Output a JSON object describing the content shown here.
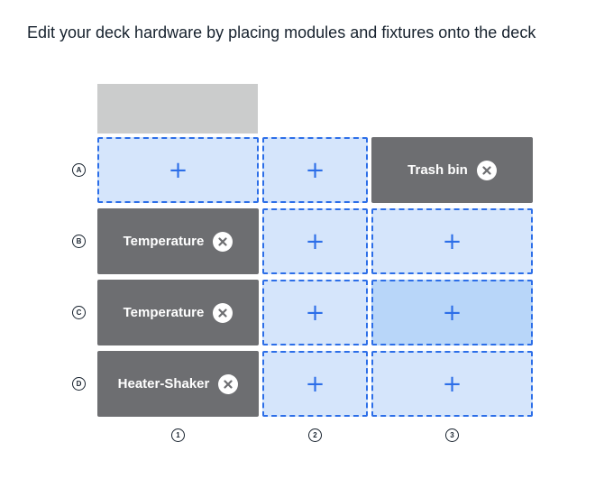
{
  "instruction": "Edit your deck hardware by placing modules and fixtures onto the deck",
  "rows": [
    "A",
    "B",
    "C",
    "D"
  ],
  "columns": [
    "1",
    "2",
    "3"
  ],
  "slots": {
    "A1": {
      "type": "empty",
      "icon": "+"
    },
    "A2": {
      "type": "empty",
      "icon": "+"
    },
    "A3": {
      "type": "fixture",
      "label": "Trash bin"
    },
    "B1": {
      "type": "module",
      "label": "Temperature"
    },
    "B2": {
      "type": "empty",
      "icon": "+"
    },
    "B3": {
      "type": "empty",
      "icon": "+"
    },
    "C1": {
      "type": "module",
      "label": "Temperature"
    },
    "C2": {
      "type": "empty",
      "icon": "+"
    },
    "C3": {
      "type": "empty",
      "icon": "+",
      "state": "hover"
    },
    "D1": {
      "type": "module",
      "label": "Heater-Shaker"
    },
    "D2": {
      "type": "empty",
      "icon": "+"
    },
    "D3": {
      "type": "empty",
      "icon": "+"
    }
  },
  "colors": {
    "empty_fill": "#d5e5fb",
    "empty_hover_fill": "#b8d6f9",
    "empty_border": "#2c6ee8",
    "occupied_fill": "#6d6e71",
    "header_block": "#cbcccc"
  }
}
